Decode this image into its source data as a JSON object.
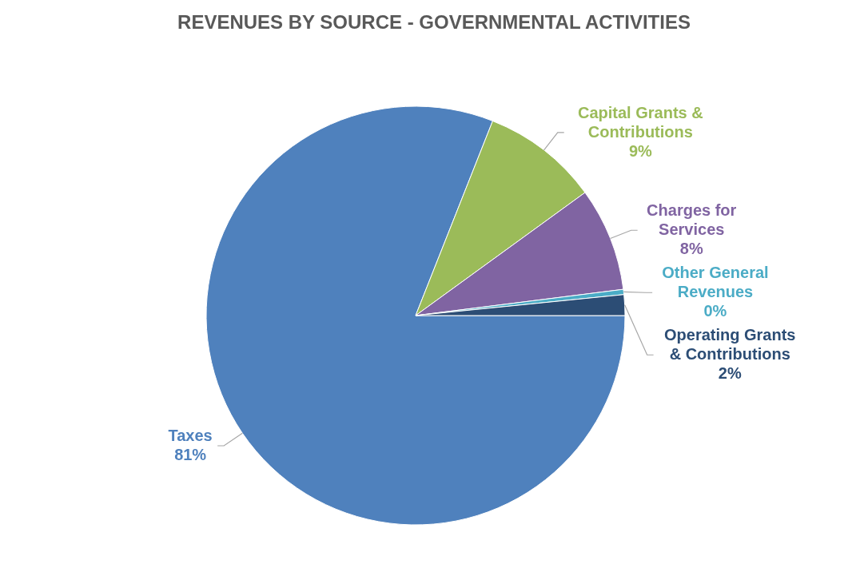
{
  "chart_data": {
    "type": "pie",
    "title": "REVENUES BY SOURCE - GOVERNMENTAL ACTIVITIES",
    "categories": [
      "Taxes",
      "Capital Grants & Contributions",
      "Charges for Services",
      "Other General Revenues",
      "Operating Grants & Contributions"
    ],
    "values": [
      81,
      9,
      8,
      0.4,
      1.6
    ],
    "value_labels": [
      "81%",
      "9%",
      "8%",
      "0%",
      "2%"
    ],
    "colors": [
      "#4f81bd",
      "#9bbb59",
      "#8064a2",
      "#4bacc6",
      "#2c4d75"
    ]
  }
}
